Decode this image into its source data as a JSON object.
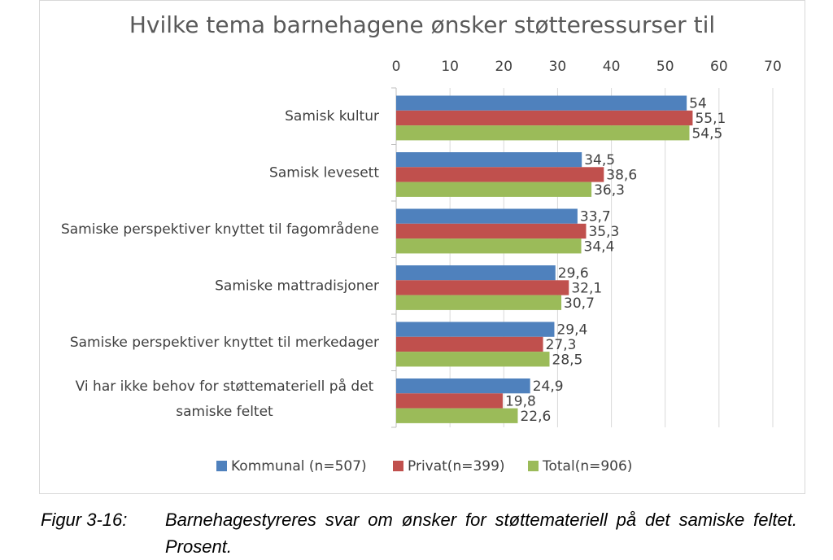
{
  "chart_data": {
    "type": "bar",
    "orientation": "horizontal",
    "title": "Hvilke tema barnehagene ønsker støtteressurser til",
    "categories": [
      "Samisk kultur",
      "Samisk levesett",
      "Samiske perspektiver knyttet til fagområdene",
      "Samiske mattradisjoner",
      "Samiske perspektiver knyttet til merkedager",
      "Vi har ikke behov for støttemateriell på det samiske feltet"
    ],
    "series": [
      {
        "name": "Kommunal (n=507)",
        "color": "#4f81bd",
        "values": [
          54,
          34.5,
          33.7,
          29.6,
          29.4,
          24.9
        ],
        "value_labels": [
          "54",
          "34,5",
          "33,7",
          "29,6",
          "29,4",
          "24,9"
        ]
      },
      {
        "name": "Privat(n=399)",
        "color": "#c0504d",
        "values": [
          55.1,
          38.6,
          35.3,
          32.1,
          27.3,
          19.8
        ],
        "value_labels": [
          "55,1",
          "38,6",
          "35,3",
          "32,1",
          "27,3",
          "19,8"
        ]
      },
      {
        "name": "Total(n=906)",
        "color": "#9bbb59",
        "values": [
          54.5,
          36.3,
          34.4,
          30.7,
          28.5,
          22.6
        ],
        "value_labels": [
          "54,5",
          "36,3",
          "34,4",
          "30,7",
          "28,5",
          "22,6"
        ]
      }
    ],
    "xlim": [
      0,
      70
    ],
    "xticks": [
      0,
      10,
      20,
      30,
      40,
      50,
      60,
      70
    ],
    "grid": true,
    "legend": "bottom"
  },
  "caption": {
    "label": "Figur 3-16:",
    "text": "Barnehagestyreres svar om ønsker for støttemateriell på det samiske feltet. Prosent."
  }
}
